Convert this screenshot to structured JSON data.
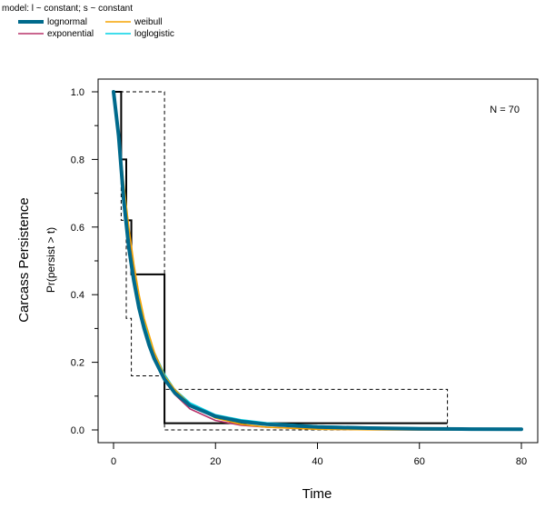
{
  "legend": {
    "title": "model:  l ~ constant; s ~ constant",
    "entries": [
      {
        "name": "lognormal",
        "color": "#006a8c",
        "width": "thick"
      },
      {
        "name": "weibull",
        "color": "#f5a300",
        "width": "thin"
      },
      {
        "name": "exponential",
        "color": "#b8336a",
        "width": "thin"
      },
      {
        "name": "loglogistic",
        "color": "#00d2e6",
        "width": "thin"
      }
    ]
  },
  "chart_data": {
    "type": "line",
    "title": "",
    "annotation": "N = 70",
    "xlabel": "Time",
    "ylabel": "Carcass Persistence",
    "ylabel2": "Pr(persist > t)",
    "xlim": [
      0,
      80
    ],
    "ylim": [
      0,
      1
    ],
    "xticks": [
      0,
      20,
      40,
      60,
      80
    ],
    "yticks": [
      0.0,
      0.2,
      0.4,
      0.6,
      0.8,
      1.0
    ],
    "ytick_labels": [
      "0.0",
      "0.2",
      "0.4",
      "0.6",
      "0.8",
      "1.0"
    ],
    "grid": false,
    "series": [
      {
        "name": "exponential",
        "x": [
          0,
          1,
          2,
          3,
          4,
          5,
          6,
          7,
          8,
          10,
          12,
          15,
          20,
          25,
          30,
          40,
          50,
          60,
          70,
          80
        ],
        "values": [
          1.0,
          0.855,
          0.7,
          0.57,
          0.47,
          0.39,
          0.32,
          0.265,
          0.22,
          0.15,
          0.105,
          0.062,
          0.028,
          0.014,
          0.008,
          0.0025,
          0.0008,
          0.0002,
          0.0001,
          0.0
        ]
      },
      {
        "name": "loglogistic",
        "x": [
          0,
          1,
          2,
          3,
          4,
          5,
          6,
          7,
          8,
          10,
          12,
          15,
          20,
          25,
          30,
          40,
          50,
          60,
          70,
          80
        ],
        "values": [
          1.0,
          0.87,
          0.7,
          0.56,
          0.46,
          0.38,
          0.32,
          0.27,
          0.23,
          0.165,
          0.12,
          0.08,
          0.045,
          0.03,
          0.021,
          0.012,
          0.008,
          0.006,
          0.004,
          0.003
        ]
      },
      {
        "name": "weibull",
        "x": [
          0,
          0.5,
          1,
          2,
          3,
          4,
          5,
          6,
          7,
          8,
          10,
          12,
          15,
          20,
          25,
          30,
          40,
          50,
          60,
          70,
          80
        ],
        "values": [
          1.0,
          0.95,
          0.88,
          0.73,
          0.6,
          0.49,
          0.4,
          0.33,
          0.28,
          0.23,
          0.16,
          0.12,
          0.075,
          0.035,
          0.017,
          0.008,
          0.002,
          0.0005,
          0.0001,
          0.0,
          0.0
        ]
      },
      {
        "name": "lognormal",
        "x": [
          0,
          1,
          2,
          3,
          4,
          5,
          6,
          7,
          8,
          10,
          12,
          15,
          20,
          25,
          30,
          40,
          50,
          60,
          70,
          80
        ],
        "values": [
          1.0,
          0.87,
          0.68,
          0.54,
          0.44,
          0.36,
          0.3,
          0.25,
          0.21,
          0.15,
          0.11,
          0.072,
          0.04,
          0.025,
          0.017,
          0.009,
          0.0055,
          0.0036,
          0.0025,
          0.0018
        ]
      }
    ],
    "kaplan_meier": {
      "estimate": {
        "x": [
          0,
          1.5,
          1.5,
          2.5,
          2.5,
          3.5,
          3.5,
          10,
          10,
          65.5
        ],
        "y": [
          1.0,
          1.0,
          0.8,
          0.8,
          0.62,
          0.62,
          0.46,
          0.46,
          0.02,
          0.02
        ]
      },
      "upper": {
        "x": [
          0,
          10,
          10,
          65.5,
          65.5
        ],
        "y": [
          1.0,
          1.0,
          0.12,
          0.12,
          0.0
        ]
      },
      "lower": {
        "x": [
          1.5,
          1.5,
          2.5,
          2.5,
          3.5,
          3.5,
          10,
          10,
          65.5
        ],
        "y": [
          1.0,
          0.62,
          0.62,
          0.33,
          0.33,
          0.16,
          0.16,
          0.0,
          0.0
        ]
      }
    }
  }
}
